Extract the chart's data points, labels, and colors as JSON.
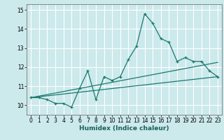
{
  "xlabel": "Humidex (Indice chaleur)",
  "bg_color": "#cce9ec",
  "line_color": "#1a7a6e",
  "grid_color": "#ffffff",
  "xlim": [
    -0.5,
    23.5
  ],
  "ylim": [
    9.5,
    15.3
  ],
  "yticks": [
    10,
    11,
    12,
    13,
    14,
    15
  ],
  "xticks": [
    0,
    1,
    2,
    3,
    4,
    5,
    6,
    7,
    8,
    9,
    10,
    11,
    12,
    13,
    14,
    15,
    16,
    17,
    18,
    19,
    20,
    21,
    22,
    23
  ],
  "series1_x": [
    0,
    1,
    2,
    3,
    4,
    5,
    6,
    7,
    8,
    9,
    10,
    11,
    12,
    13,
    14,
    15,
    16,
    17,
    18,
    19,
    20,
    21,
    22,
    23
  ],
  "series1_y": [
    10.4,
    10.4,
    10.3,
    10.1,
    10.1,
    9.9,
    10.9,
    11.8,
    10.3,
    11.5,
    11.3,
    11.5,
    12.4,
    13.1,
    14.8,
    14.3,
    13.5,
    13.3,
    12.3,
    12.5,
    12.3,
    12.3,
    11.8,
    11.5
  ],
  "series2_x": [
    0,
    23
  ],
  "series2_y": [
    10.4,
    11.5
  ],
  "series3_x": [
    0,
    23
  ],
  "series3_y": [
    10.4,
    12.25
  ]
}
